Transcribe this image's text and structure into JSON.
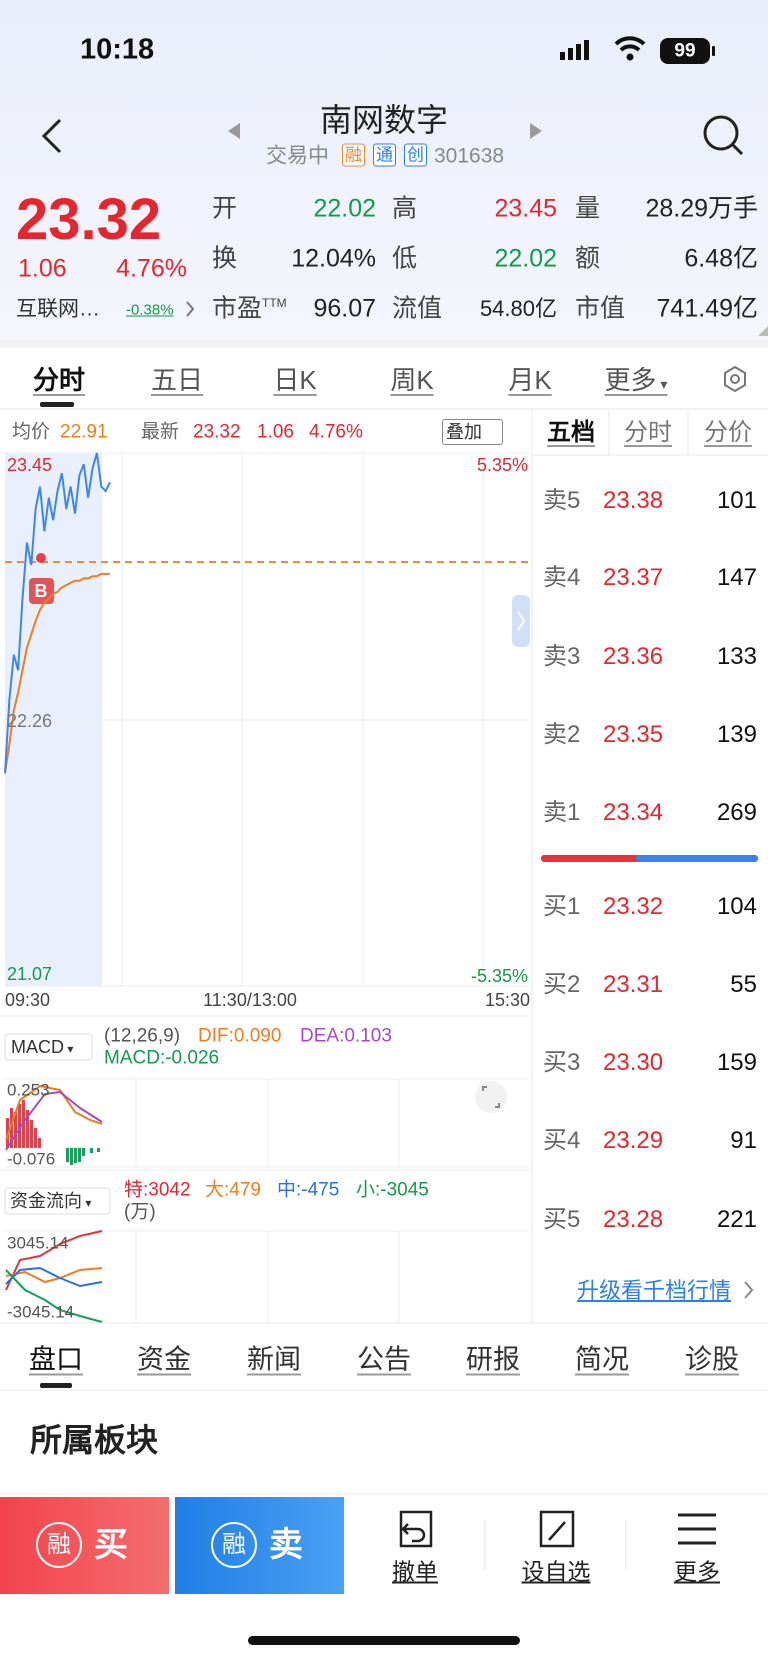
{
  "status_bar": {
    "time": "10:18",
    "battery": "99"
  },
  "header": {
    "title": "南网数字",
    "trade_status": "交易中",
    "badges": [
      "融",
      "通",
      "创"
    ],
    "code": "301638"
  },
  "quote": {
    "price": "23.32",
    "change": "1.06",
    "change_pct": "4.76%",
    "sector": "互联网…",
    "sector_change": "-0.38%",
    "stats": [
      [
        {
          "label": "开",
          "value": "22.02"
        },
        {
          "label": "高",
          "value": "23.45"
        },
        {
          "label": "量",
          "value": "28.29万手"
        }
      ],
      [
        {
          "label": "换",
          "value": "12.04%"
        },
        {
          "label": "低",
          "value": "22.02"
        },
        {
          "label": "额",
          "value": "6.48亿"
        }
      ],
      [
        {
          "label": "市盈",
          "sup": "TTM",
          "value": "96.07"
        },
        {
          "label": "流值",
          "value": "54.80亿"
        },
        {
          "label": "市值",
          "value": "741.49亿"
        }
      ]
    ]
  },
  "chart_tabs": [
    "分时",
    "五日",
    "日K",
    "周K",
    "月K",
    "更多"
  ],
  "intraday": {
    "avg_label": "均价",
    "avg": "22.91",
    "latest_label": "最新",
    "latest": "23.32",
    "change": "1.06",
    "change_pct": "4.76%",
    "overlay": "叠加",
    "ylim": [
      21.07,
      23.45
    ],
    "yticks": [
      21.07,
      22.26,
      23.45
    ],
    "pct_top": "5.35%",
    "pct_bottom": "-5.35%",
    "xlabels": [
      "09:30",
      "11:30/13:00",
      "15:30"
    ],
    "trade_marker": "B",
    "price": [
      22.02,
      22.35,
      22.55,
      22.48,
      22.8,
      23.05,
      22.95,
      23.2,
      23.3,
      23.1,
      23.25,
      23.15,
      23.28,
      23.36,
      23.2,
      23.3,
      23.18,
      23.35,
      23.4,
      23.25,
      23.38,
      23.45,
      23.3,
      23.28,
      23.32
    ],
    "avg_price": [
      22.02,
      22.15,
      22.3,
      22.38,
      22.48,
      22.58,
      22.64,
      22.7,
      22.75,
      22.78,
      22.8,
      22.82,
      22.83,
      22.85,
      22.86,
      22.87,
      22.88,
      22.88,
      22.89,
      22.89,
      22.9,
      22.9,
      22.91,
      22.91,
      22.91
    ]
  },
  "macd": {
    "selector": "MACD",
    "params": "(12,26,9)",
    "dif": "DIF:0.090",
    "dea": "DEA:0.103",
    "macd": "MACD:-0.026",
    "top": "0.253",
    "bottom": "-0.076"
  },
  "fund_flow": {
    "selector": "资金流向",
    "super": "特:3042",
    "large": "大:479",
    "medium": "中:-475",
    "small": "小:-3045",
    "unit": "(万)",
    "top": "3045.14",
    "bottom": "-3045.14"
  },
  "order_book": {
    "tabs": [
      "五档",
      "分时",
      "分价"
    ],
    "asks": [
      {
        "label": "卖5",
        "price": "23.38",
        "volume": "101"
      },
      {
        "label": "卖4",
        "price": "23.37",
        "volume": "147"
      },
      {
        "label": "卖3",
        "price": "23.36",
        "volume": "133"
      },
      {
        "label": "卖2",
        "price": "23.35",
        "volume": "139"
      },
      {
        "label": "卖1",
        "price": "23.34",
        "volume": "269"
      }
    ],
    "bids": [
      {
        "label": "买1",
        "price": "23.32",
        "volume": "104"
      },
      {
        "label": "买2",
        "price": "23.31",
        "volume": "55"
      },
      {
        "label": "买3",
        "price": "23.30",
        "volume": "159"
      },
      {
        "label": "买4",
        "price": "23.29",
        "volume": "91"
      },
      {
        "label": "买5",
        "price": "23.28",
        "volume": "221"
      }
    ],
    "upgrade": "升级看千档行情"
  },
  "detail_tabs": [
    "盘口",
    "资金",
    "新闻",
    "公告",
    "研报",
    "简况",
    "诊股"
  ],
  "section_title": "所属板块",
  "actions": {
    "margin_badge": "融",
    "buy": "买",
    "sell": "卖",
    "others": [
      "撤单",
      "设自选",
      "更多"
    ]
  }
}
